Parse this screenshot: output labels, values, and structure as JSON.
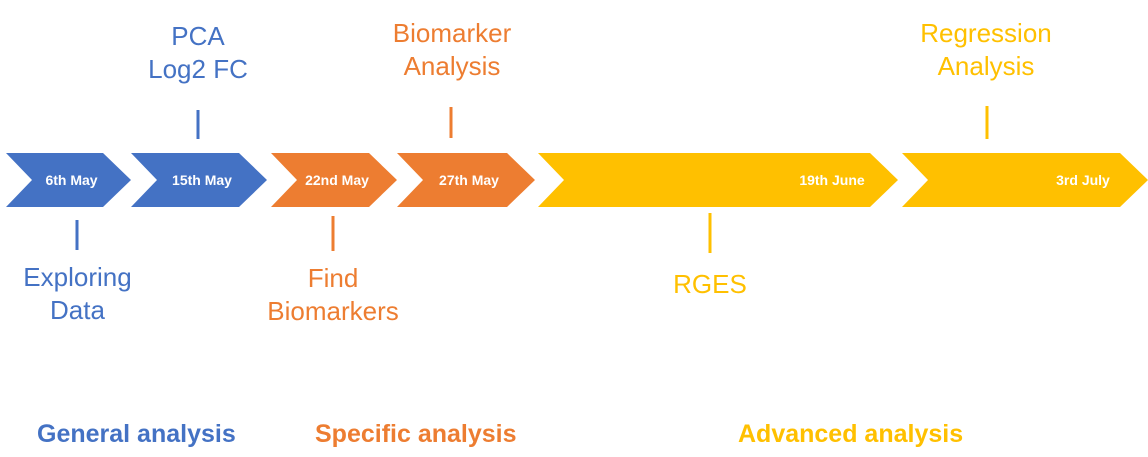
{
  "colors": {
    "blue": "#4472C4",
    "orange": "#ED7D31",
    "yellow": "#FFC000",
    "chevron_text": "#ffffff"
  },
  "chevrons": [
    {
      "label": "6th May",
      "color": "blue"
    },
    {
      "label": "15th May",
      "color": "blue"
    },
    {
      "label": "22nd May",
      "color": "orange"
    },
    {
      "label": "27th May",
      "color": "orange"
    },
    {
      "label": "",
      "color": "yellow"
    },
    {
      "label": "",
      "color": "yellow"
    },
    {
      "label": "19th June",
      "color": "yellow"
    },
    {
      "label": "",
      "color": "yellow"
    },
    {
      "label": "3rd July",
      "color": "yellow"
    }
  ],
  "milestones": {
    "pca": {
      "lines": [
        "PCA",
        "Log2 FC"
      ],
      "color": "blue"
    },
    "exploring": {
      "lines": [
        "Exploring",
        "Data"
      ],
      "color": "blue"
    },
    "biomarker_analysis": {
      "lines": [
        "Biomarker",
        "Analysis"
      ],
      "color": "orange"
    },
    "find_biomarkers": {
      "lines": [
        "Find",
        "Biomarkers"
      ],
      "color": "orange"
    },
    "rges": {
      "lines": [
        "RGES"
      ],
      "color": "yellow"
    },
    "regression": {
      "lines": [
        "Regression",
        "Analysis"
      ],
      "color": "yellow"
    }
  },
  "categories": {
    "general": "General analysis",
    "specific": "Specific analysis",
    "advanced": "Advanced analysis"
  }
}
